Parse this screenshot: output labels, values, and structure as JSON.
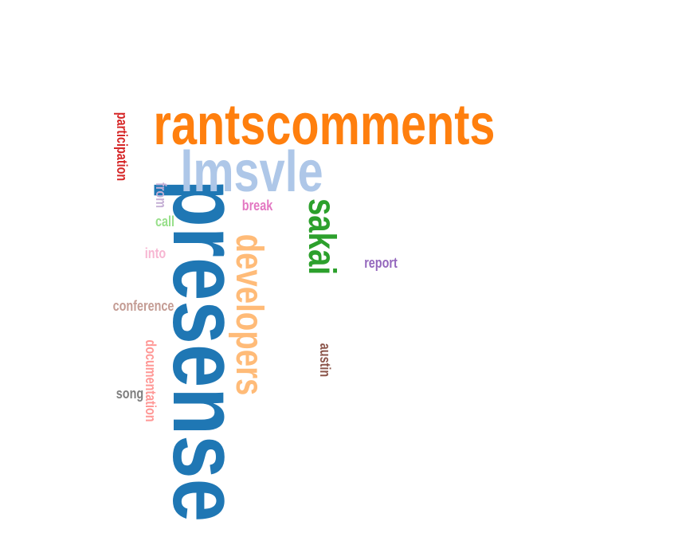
{
  "word_cloud": {
    "words": [
      {
        "text": "presense",
        "color": "#1f77b4"
      },
      {
        "text": "rantscomments",
        "color": "#ff7f0e"
      },
      {
        "text": "lmsvle",
        "color": "#aec7e8"
      },
      {
        "text": "developers",
        "color": "#ffbb78"
      },
      {
        "text": "sakai",
        "color": "#2ca02c"
      },
      {
        "text": "participation",
        "color": "#d62728"
      },
      {
        "text": "from",
        "color": "#c5b0d5"
      },
      {
        "text": "call",
        "color": "#98df8a"
      },
      {
        "text": "break",
        "color": "#e377c2"
      },
      {
        "text": "into",
        "color": "#f7b6d2"
      },
      {
        "text": "report",
        "color": "#9467bd"
      },
      {
        "text": "conference",
        "color": "#c49c94"
      },
      {
        "text": "documentation",
        "color": "#ff9896"
      },
      {
        "text": "austin",
        "color": "#8c564b"
      },
      {
        "text": "song",
        "color": "#7f7f7f"
      }
    ]
  }
}
